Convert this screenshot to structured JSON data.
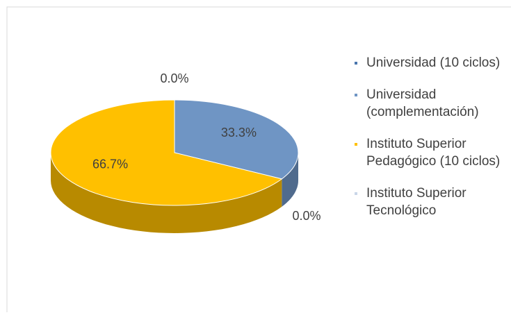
{
  "chart_data": {
    "type": "pie",
    "categories": [
      "Universidad (10 ciclos)",
      "Universidad (complementación)",
      "Instituto Superior Pedagógico (10 ciclos)",
      "Instituto Superior Tecnológico"
    ],
    "values": [
      0,
      33.3,
      66.7,
      0
    ],
    "value_labels": [
      "0.0%",
      "33.3%",
      "66.7%",
      "0.0%"
    ],
    "colors": [
      "#4a76ad",
      "#6f95c4",
      "#ffc000",
      "#c9d6e8"
    ],
    "legend": "right"
  }
}
